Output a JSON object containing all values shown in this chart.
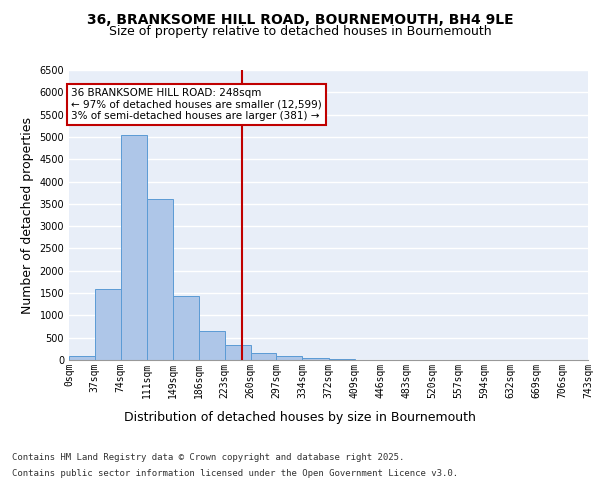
{
  "title_line1": "36, BRANKSOME HILL ROAD, BOURNEMOUTH, BH4 9LE",
  "title_line2": "Size of property relative to detached houses in Bournemouth",
  "xlabel": "Distribution of detached houses by size in Bournemouth",
  "ylabel": "Number of detached properties",
  "footer_line1": "Contains HM Land Registry data © Crown copyright and database right 2025.",
  "footer_line2": "Contains public sector information licensed under the Open Government Licence v3.0.",
  "bar_edges": [
    0,
    37,
    74,
    111,
    149,
    186,
    223,
    260,
    297,
    334,
    372,
    409,
    446,
    483,
    520,
    557,
    594,
    632,
    669,
    706,
    743
  ],
  "bar_heights": [
    80,
    1600,
    5050,
    3600,
    1430,
    650,
    330,
    160,
    100,
    55,
    25,
    10,
    5,
    2,
    1,
    0,
    0,
    0,
    0,
    0
  ],
  "bar_color": "#aec6e8",
  "bar_edge_color": "#5b9bd5",
  "vline_x": 248,
  "vline_color": "#c00000",
  "annotation_text": "36 BRANKSOME HILL ROAD: 248sqm\n← 97% of detached houses are smaller (12,599)\n3% of semi-detached houses are larger (381) →",
  "annotation_box_color": "#c00000",
  "annotation_text_color": "#000000",
  "ylim": [
    0,
    6500
  ],
  "yticks": [
    0,
    500,
    1000,
    1500,
    2000,
    2500,
    3000,
    3500,
    4000,
    4500,
    5000,
    5500,
    6000,
    6500
  ],
  "background_color": "#e8eef8",
  "grid_color": "#ffffff",
  "title_fontsize": 10,
  "subtitle_fontsize": 9,
  "tick_fontsize": 7,
  "label_fontsize": 9
}
